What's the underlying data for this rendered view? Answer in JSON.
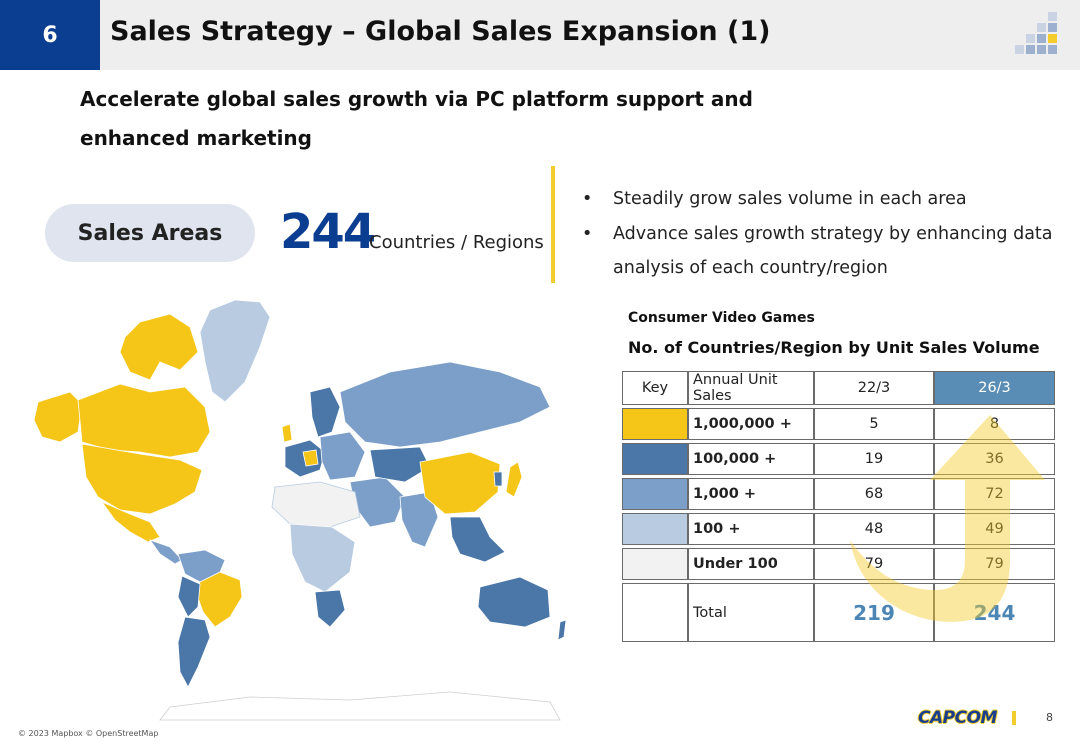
{
  "header": {
    "section_number": "6",
    "title": "Sales Strategy – Global Sales Expansion (1)"
  },
  "subtitle": "Accelerate global sales growth via PC platform support and enhanced marketing",
  "sales_areas": {
    "label": "Sales Areas",
    "count": "244",
    "unit": "Countries / Regions"
  },
  "bullets": [
    "Steadily grow sales volume in each area",
    "Advance sales growth strategy by enhancing data analysis of each country/region"
  ],
  "map": {
    "attribution": "© 2023 Mapbox © OpenStreetMap"
  },
  "table": {
    "heading_category": "Consumer Video Games",
    "heading_title": "No. of Countries/Region by Unit Sales Volume",
    "col_key": "Key",
    "col_label": "Annual Unit Sales",
    "col_a": "22/3",
    "col_b": "26/3",
    "rows": [
      {
        "color": "#f5c518",
        "label": "1,000,000 +",
        "a": "5",
        "b": "8"
      },
      {
        "color": "#4a76a8",
        "label": "100,000 +",
        "a": "19",
        "b": "36"
      },
      {
        "color": "#7b9fc9",
        "label": "1,000 +",
        "a": "68",
        "b": "72"
      },
      {
        "color": "#b8cbe0",
        "label": "100 +",
        "a": "48",
        "b": "49"
      },
      {
        "color": "#f2f2f2",
        "label": "Under 100",
        "a": "79",
        "b": "79"
      }
    ],
    "total": {
      "label": "Total",
      "a": "219",
      "b": "244"
    }
  },
  "footer": {
    "logo_text": "CAPCOM",
    "page_number": "8"
  },
  "colors": {
    "brand_blue": "#0b3d91",
    "accent_yellow": "#f3cd2d",
    "column_highlight": "#5a8db5"
  }
}
